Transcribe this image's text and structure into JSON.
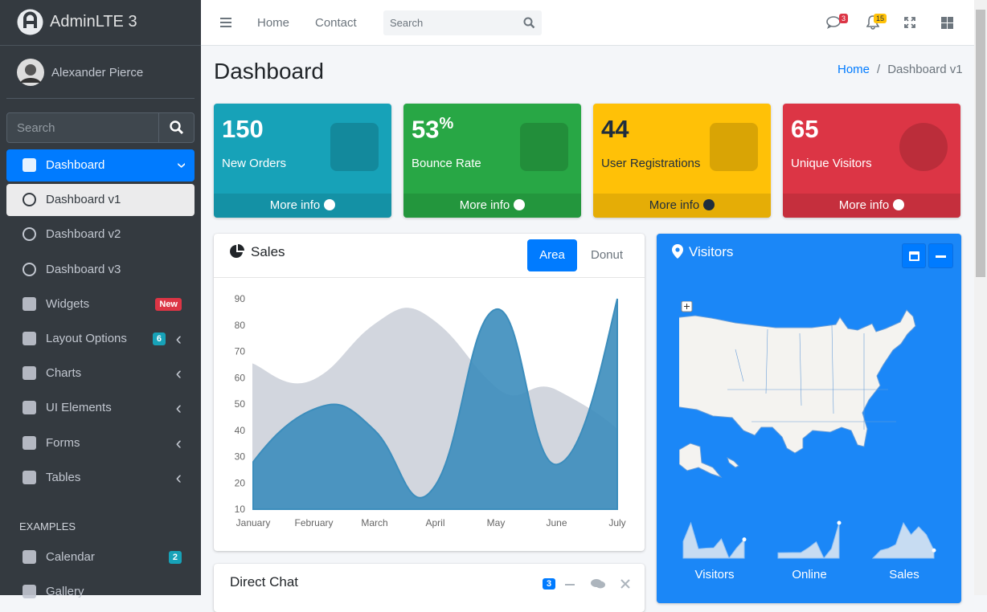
{
  "brand": "AdminLTE 3",
  "user": "Alexander Pierce",
  "sidebar_search": "Search",
  "menu": [
    {
      "label": "Dashboard"
    },
    {
      "label": "Dashboard v1"
    },
    {
      "label": "Dashboard v2"
    },
    {
      "label": "Dashboard v3"
    },
    {
      "label": "Widgets",
      "badge": "New"
    },
    {
      "label": "Layout Options",
      "badge": "6"
    },
    {
      "label": "Charts"
    },
    {
      "label": "UI Elements"
    },
    {
      "label": "Forms"
    },
    {
      "label": "Tables"
    }
  ],
  "examples_header": "EXAMPLES",
  "examples": [
    {
      "label": "Calendar",
      "badge": "2"
    },
    {
      "label": "Gallery"
    }
  ],
  "navbar": {
    "links": [
      "Home",
      "Contact"
    ],
    "search": "Search",
    "messages_badge": "3",
    "notifications_badge": "15"
  },
  "page": {
    "title": "Dashboard",
    "breadcrumb": [
      "Home",
      "Dashboard v1"
    ]
  },
  "info_boxes": [
    {
      "value": "150",
      "label": "New Orders",
      "link": "More info",
      "color": "#17a2b8"
    },
    {
      "value": "53",
      "sup": "%",
      "label": "Bounce Rate",
      "link": "More info",
      "color": "#28a745"
    },
    {
      "value": "44",
      "label": "User Registrations",
      "link": "More info",
      "color": "#ffc107"
    },
    {
      "value": "65",
      "label": "Unique Visitors",
      "link": "More info",
      "color": "#dc3545"
    }
  ],
  "sales": {
    "title": "Sales",
    "tabs": [
      "Area",
      "Donut"
    ],
    "chart": {
      "type": "area",
      "categories": [
        "January",
        "February",
        "March",
        "April",
        "May",
        "June",
        "July"
      ],
      "series": [
        {
          "color": "#d2d6de",
          "values": [
            65,
            59,
            80,
            81,
            56,
            55,
            40
          ]
        },
        {
          "color": "#3c8dbc",
          "values": [
            28,
            48,
            40,
            19,
            86,
            27,
            90
          ]
        }
      ],
      "ylim": [
        10,
        90
      ],
      "yticks": [
        10,
        20,
        30,
        40,
        50,
        60,
        70,
        80,
        90
      ],
      "grid": false
    }
  },
  "visitors": {
    "title": "Visitors",
    "sparklines": [
      {
        "label": "Visitors",
        "values": [
          1000,
          1200,
          920,
          927,
          931,
          1027,
          819,
          930,
          1021
        ]
      },
      {
        "label": "Online",
        "values": [
          515,
          519,
          520,
          522,
          652,
          810,
          370,
          627,
          1319
        ]
      },
      {
        "label": "Sales",
        "values": [
          15,
          19,
          20,
          22,
          33,
          27,
          31,
          27,
          19
        ]
      }
    ]
  },
  "direct_chat": {
    "title": "Direct Chat",
    "badge": "3"
  }
}
